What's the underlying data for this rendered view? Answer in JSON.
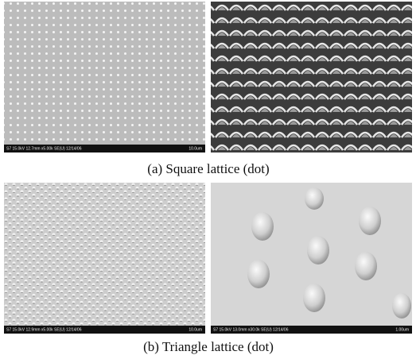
{
  "figures": [
    {
      "caption": "(a) Square lattice (dot)",
      "images": [
        {
          "info": "S7 15.0kV 12.7mm x5.00k SE(U) 12/14/06",
          "scale": "10.0um"
        }
      ]
    },
    {
      "caption": "(b) Triangle lattice (dot)",
      "images": [
        {
          "info": "S7 15.0kV 12.9mm x5.00k SE(U) 12/14/06",
          "scale": "10.0um"
        },
        {
          "info": "S7 15.0kV 13.0mm x30.0k SE(U) 12/14/06",
          "scale": "1.00um"
        }
      ]
    }
  ]
}
